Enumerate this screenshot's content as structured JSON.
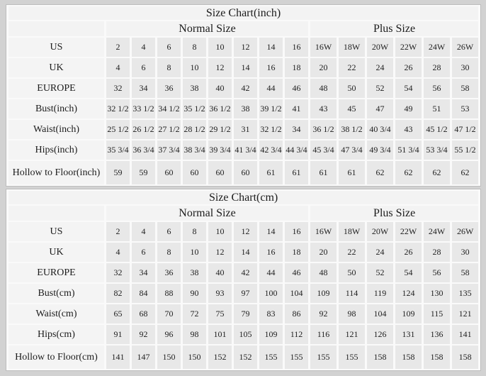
{
  "page": {
    "colors": {
      "background": "#d2d2d2",
      "grid_line": "#fafafa",
      "value_cell_bg": "#e8e8e8",
      "label_cell_bg": "#f4f4f4",
      "text": "#1c1c1c"
    }
  },
  "chart_data": [
    {
      "type": "table",
      "title": "Size Chart(inch)",
      "column_groups": [
        {
          "label": "Normal Size",
          "span": 8
        },
        {
          "label": "Plus Size",
          "span": 6
        }
      ],
      "rows": [
        {
          "label": "US",
          "values": [
            "2",
            "4",
            "6",
            "8",
            "10",
            "12",
            "14",
            "16",
            "16W",
            "18W",
            "20W",
            "22W",
            "24W",
            "26W"
          ]
        },
        {
          "label": "UK",
          "values": [
            "4",
            "6",
            "8",
            "10",
            "12",
            "14",
            "16",
            "18",
            "20",
            "22",
            "24",
            "26",
            "28",
            "30"
          ]
        },
        {
          "label": "EUROPE",
          "values": [
            "32",
            "34",
            "36",
            "38",
            "40",
            "42",
            "44",
            "46",
            "48",
            "50",
            "52",
            "54",
            "56",
            "58"
          ]
        },
        {
          "label": "Bust(inch)",
          "values": [
            "32 1/2",
            "33 1/2",
            "34 1/2",
            "35 1/2",
            "36 1/2",
            "38",
            "39 1/2",
            "41",
            "43",
            "45",
            "47",
            "49",
            "51",
            "53"
          ]
        },
        {
          "label": "Waist(inch)",
          "values": [
            "25 1/2",
            "26 1/2",
            "27 1/2",
            "28 1/2",
            "29 1/2",
            "31",
            "32 1/2",
            "34",
            "36 1/2",
            "38 1/2",
            "40 3/4",
            "43",
            "45 1/2",
            "47 1/2"
          ]
        },
        {
          "label": "Hips(inch)",
          "values": [
            "35 3/4",
            "36 3/4",
            "37 3/4",
            "38 3/4",
            "39 3/4",
            "41 3/4",
            "42 3/4",
            "44 3/4",
            "45 3/4",
            "47 3/4",
            "49 3/4",
            "51 3/4",
            "53 3/4",
            "55 1/2"
          ]
        },
        {
          "label": "Hollow to Floor(inch)",
          "values": [
            "59",
            "59",
            "60",
            "60",
            "60",
            "60",
            "61",
            "61",
            "61",
            "61",
            "62",
            "62",
            "62",
            "62"
          ]
        }
      ]
    },
    {
      "type": "table",
      "title": "Size Chart(cm)",
      "column_groups": [
        {
          "label": "Normal Size",
          "span": 8
        },
        {
          "label": "Plus Size",
          "span": 6
        }
      ],
      "rows": [
        {
          "label": "US",
          "values": [
            "2",
            "4",
            "6",
            "8",
            "10",
            "12",
            "14",
            "16",
            "16W",
            "18W",
            "20W",
            "22W",
            "24W",
            "26W"
          ]
        },
        {
          "label": "UK",
          "values": [
            "4",
            "6",
            "8",
            "10",
            "12",
            "14",
            "16",
            "18",
            "20",
            "22",
            "24",
            "26",
            "28",
            "30"
          ]
        },
        {
          "label": "EUROPE",
          "values": [
            "32",
            "34",
            "36",
            "38",
            "40",
            "42",
            "44",
            "46",
            "48",
            "50",
            "52",
            "54",
            "56",
            "58"
          ]
        },
        {
          "label": "Bust(cm)",
          "values": [
            "82",
            "84",
            "88",
            "90",
            "93",
            "97",
            "100",
            "104",
            "109",
            "114",
            "119",
            "124",
            "130",
            "135"
          ]
        },
        {
          "label": "Waist(cm)",
          "values": [
            "65",
            "68",
            "70",
            "72",
            "75",
            "79",
            "83",
            "86",
            "92",
            "98",
            "104",
            "109",
            "115",
            "121"
          ]
        },
        {
          "label": "Hips(cm)",
          "values": [
            "91",
            "92",
            "96",
            "98",
            "101",
            "105",
            "109",
            "112",
            "116",
            "121",
            "126",
            "131",
            "136",
            "141"
          ]
        },
        {
          "label": "Hollow to Floor(cm)",
          "values": [
            "141",
            "147",
            "150",
            "150",
            "152",
            "152",
            "155",
            "155",
            "155",
            "155",
            "158",
            "158",
            "158",
            "158"
          ]
        }
      ]
    }
  ]
}
